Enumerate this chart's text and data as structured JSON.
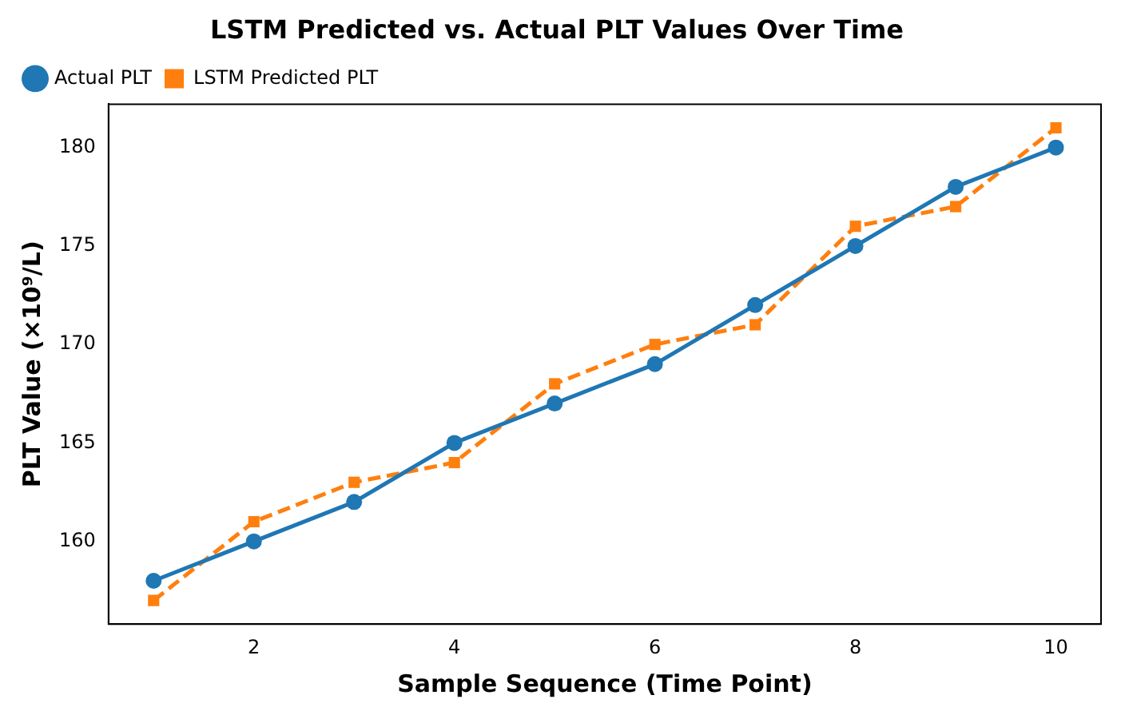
{
  "chart_data": {
    "type": "line",
    "title": "LSTM Predicted vs. Actual PLT Values Over Time",
    "xlabel": "Sample Sequence (Time Point)",
    "ylabel": "PLT Value (×10⁹/L)",
    "x": [
      1,
      2,
      3,
      4,
      5,
      6,
      7,
      8,
      9,
      10
    ],
    "series": [
      {
        "name": "Actual PLT",
        "color": "#1f77b4",
        "marker": "circle",
        "line_style": "solid",
        "values": [
          158,
          160,
          162,
          165,
          167,
          169,
          172,
          175,
          178,
          180
        ]
      },
      {
        "name": "LSTM Predicted PLT",
        "color": "#ff7f0e",
        "marker": "square",
        "line_style": "dashed",
        "values": [
          157,
          161,
          163,
          164,
          168,
          170,
          171,
          176,
          177,
          181
        ]
      }
    ],
    "xlim": [
      0.55,
      10.45
    ],
    "xticks": [
      2,
      4,
      6,
      8,
      10
    ],
    "ylim": [
      155.8,
      182.2
    ],
    "yticks": [
      160,
      165,
      170,
      175,
      180
    ],
    "grid": false,
    "legend": "top left"
  }
}
